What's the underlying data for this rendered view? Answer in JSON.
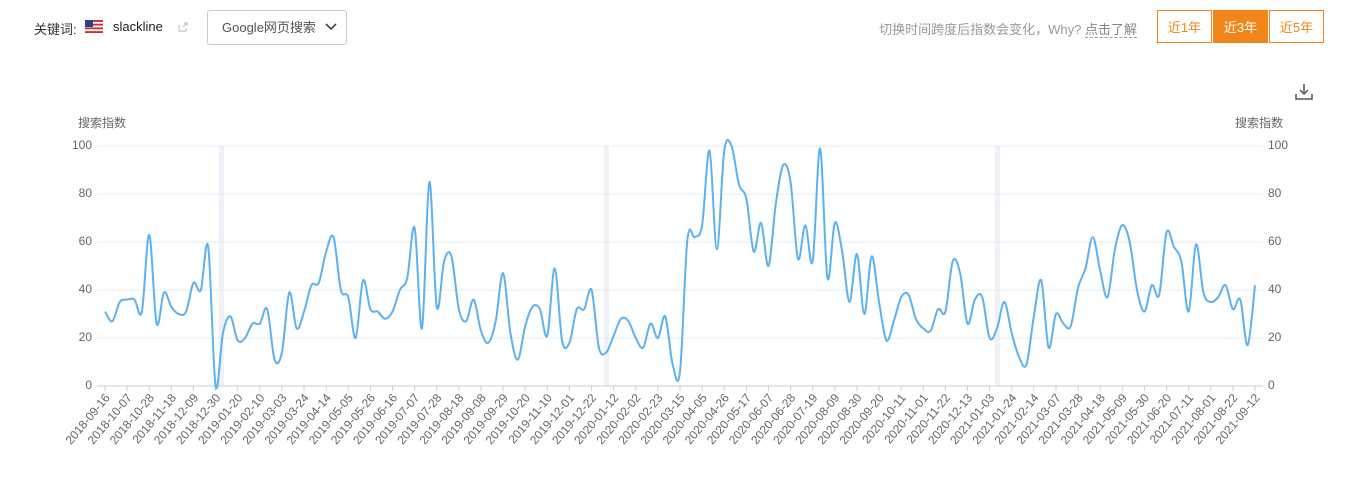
{
  "header": {
    "keyword_label": "关键词:",
    "keyword": "slackline",
    "source": "Google网页搜索",
    "note": "切换时间跨度后指数会变化，Why?",
    "note_link": "点击了解",
    "ranges": [
      "近1年",
      "近3年",
      "近5年"
    ],
    "active_range": 1
  },
  "chart_data": {
    "type": "line",
    "y_label": "搜索指数",
    "y2_label": "搜索指数",
    "categories": [
      "2018-09-16",
      null,
      null,
      "2018-10-07",
      null,
      null,
      "2018-10-28",
      null,
      null,
      "2018-11-18",
      null,
      null,
      "2018-12-09",
      null,
      null,
      "2018-12-30",
      null,
      null,
      "2019-01-20",
      null,
      null,
      "2019-02-10",
      null,
      null,
      "2019-03-03",
      null,
      null,
      "2019-03-24",
      null,
      null,
      "2019-04-14",
      null,
      null,
      "2019-05-05",
      null,
      null,
      "2019-05-26",
      null,
      null,
      "2019-06-16",
      null,
      null,
      "2019-07-07",
      null,
      null,
      "2019-07-28",
      null,
      null,
      "2019-08-18",
      null,
      null,
      "2019-09-08",
      null,
      null,
      "2019-09-29",
      null,
      null,
      "2019-10-20",
      null,
      null,
      "2019-11-10",
      null,
      null,
      "2019-12-01",
      null,
      null,
      "2019-12-22",
      null,
      null,
      "2020-01-12",
      null,
      null,
      "2020-02-02",
      null,
      null,
      "2020-02-23",
      null,
      null,
      "2020-03-15",
      null,
      null,
      "2020-04-05",
      null,
      null,
      "2020-04-26",
      null,
      null,
      "2020-05-17",
      null,
      null,
      "2020-06-07",
      null,
      null,
      "2020-06-28",
      null,
      null,
      "2020-07-19",
      null,
      null,
      "2020-08-09",
      null,
      null,
      "2020-08-30",
      null,
      null,
      "2020-09-20",
      null,
      null,
      "2020-10-11",
      null,
      null,
      "2020-11-01",
      null,
      null,
      "2020-11-22",
      null,
      null,
      "2020-12-13",
      null,
      null,
      "2021-01-03",
      null,
      null,
      "2021-01-24",
      null,
      null,
      "2021-02-14",
      null,
      null,
      "2021-03-07",
      null,
      null,
      "2021-03-28",
      null,
      null,
      "2021-04-18",
      null,
      null,
      "2021-05-09",
      null,
      null,
      "2021-05-30",
      null,
      null,
      "2021-06-20",
      null,
      null,
      "2021-07-11",
      null,
      null,
      "2021-08-01",
      null,
      null,
      "2021-08-22",
      null,
      null,
      "2021-09-12"
    ],
    "series": [
      {
        "name": "slackline",
        "color": "#5eb1f0",
        "values": [
          31,
          27,
          35,
          36,
          36,
          31,
          63,
          26,
          39,
          33,
          30,
          31,
          43,
          40,
          58,
          0,
          22,
          29,
          19,
          20,
          26,
          26,
          32,
          11,
          14,
          39,
          24,
          31,
          42,
          43,
          56,
          62,
          40,
          37,
          20,
          44,
          32,
          31,
          28,
          31,
          40,
          45,
          66,
          24,
          85,
          33,
          52,
          54,
          32,
          27,
          36,
          23,
          18,
          27,
          47,
          22,
          11,
          25,
          33,
          32,
          21,
          49,
          19,
          18,
          32,
          32,
          40,
          16,
          14,
          21,
          28,
          27,
          20,
          16,
          26,
          20,
          29,
          9,
          6,
          61,
          62,
          67,
          98,
          57,
          98,
          100,
          84,
          78,
          56,
          68,
          50,
          76,
          92,
          85,
          53,
          67,
          52,
          99,
          45,
          68,
          56,
          35,
          55,
          30,
          54,
          35,
          19,
          27,
          37,
          38,
          28,
          24,
          23,
          32,
          31,
          52,
          47,
          26,
          36,
          37,
          20,
          24,
          35,
          22,
          12,
          9,
          29,
          44,
          16,
          30,
          26,
          25,
          41,
          49,
          62,
          48,
          37,
          57,
          67,
          60,
          40,
          31,
          42,
          38,
          64,
          58,
          52,
          31,
          59,
          39,
          35,
          37,
          42,
          32,
          36,
          17,
          42
        ]
      }
    ],
    "ylim": [
      0,
      100
    ],
    "yticks": [
      0,
      20,
      40,
      60,
      80,
      100
    ],
    "y2lim": [
      0,
      100
    ],
    "y2ticks": [
      0,
      20,
      40,
      60,
      80,
      100
    ],
    "grid": true
  }
}
